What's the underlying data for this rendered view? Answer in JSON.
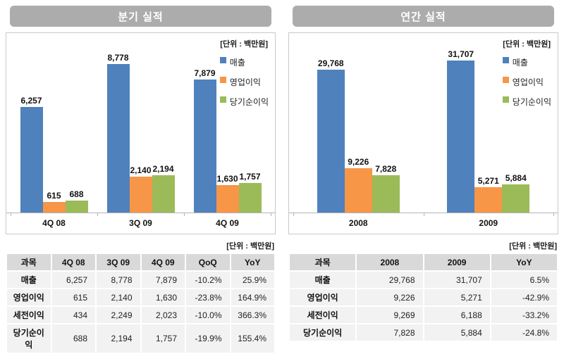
{
  "colors": {
    "title_bar_bg": "#ACACAC",
    "revenue_blue": "#4F81BD",
    "operating_orange": "#F79646",
    "net_green": "#9BBB59",
    "table_header_bg": "#D9D9D9",
    "table_row_bg": "#F2F2F2",
    "axis_gray": "#B5B5B5",
    "chart_border": "#C9C9C9"
  },
  "panels": [
    {
      "title": "분기 실적",
      "chart_unit_label": "[단위 : 백만원]",
      "table_unit_label": "[단위 : 백만원]",
      "table": {
        "headers": [
          "과목",
          "4Q 08",
          "3Q 09",
          "4Q 09",
          "QoQ",
          "YoY"
        ],
        "rows": [
          [
            "매출",
            "6,257",
            "8,778",
            "7,879",
            "-10.2%",
            "25.9%"
          ],
          [
            "영업이익",
            "615",
            "2,140",
            "1,630",
            "-23.8%",
            "164.9%"
          ],
          [
            "세전이익",
            "434",
            "2,249",
            "2,023",
            "-10.0%",
            "366.3%"
          ],
          [
            "당기순이익",
            "688",
            "2,194",
            "1,757",
            "-19.9%",
            "155.4%"
          ]
        ]
      }
    },
    {
      "title": "연간 실적",
      "chart_unit_label": "[단위 : 백만원]",
      "table_unit_label": "[단위 : 백만원]",
      "table": {
        "headers": [
          "과목",
          "2008",
          "2009",
          "YoY"
        ],
        "rows": [
          [
            "매출",
            "29,768",
            "31,707",
            "6.5%"
          ],
          [
            "영업이익",
            "9,226",
            "5,271",
            "-42.9%"
          ],
          [
            "세전이익",
            "9,269",
            "6,188",
            "-33.2%"
          ],
          [
            "당기순이익",
            "7,828",
            "5,884",
            "-24.8%"
          ]
        ]
      }
    }
  ],
  "chart_data": [
    {
      "type": "bar",
      "title": "분기 실적",
      "unit": "백만원",
      "categories": [
        "4Q 08",
        "3Q 09",
        "4Q 09"
      ],
      "series": [
        {
          "name": "매출",
          "color": "#4F81BD",
          "values": [
            6257,
            8778,
            7879
          ]
        },
        {
          "name": "영업이익",
          "color": "#F79646",
          "values": [
            615,
            2140,
            1630
          ]
        },
        {
          "name": "당기순이익",
          "color": "#9BBB59",
          "values": [
            688,
            2194,
            1757
          ]
        }
      ],
      "ylim": [
        0,
        10200
      ],
      "legend_position": "right",
      "grid": false,
      "data_labels": true
    },
    {
      "type": "bar",
      "title": "연간 실적",
      "unit": "백만원",
      "categories": [
        "2008",
        "2009"
      ],
      "series": [
        {
          "name": "매출",
          "color": "#4F81BD",
          "values": [
            29768,
            31707
          ]
        },
        {
          "name": "영업이익",
          "color": "#F79646",
          "values": [
            9226,
            5271
          ]
        },
        {
          "name": "당기순이익",
          "color": "#9BBB59",
          "values": [
            7828,
            5884
          ]
        }
      ],
      "ylim": [
        0,
        36000
      ],
      "legend_position": "right",
      "grid": false,
      "data_labels": true
    }
  ]
}
